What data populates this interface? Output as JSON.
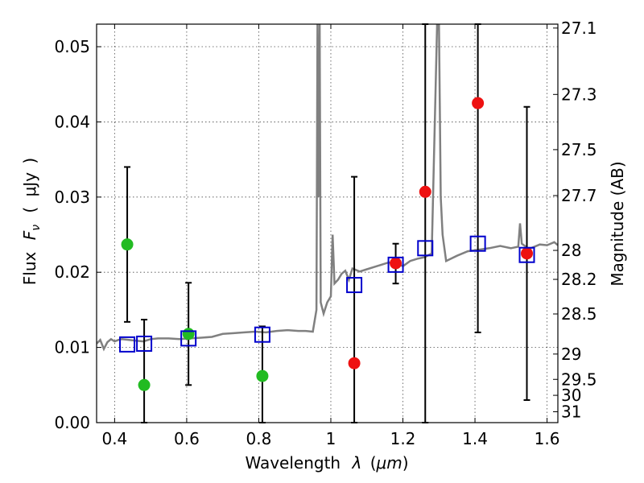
{
  "chart_data": {
    "type": "scatter",
    "xlabel": "Wavelength",
    "xlabel_symbol": "λ",
    "xlabel_unit_open": "(",
    "xlabel_unit": "μm",
    "xlabel_unit_close": ")",
    "ylabel": "Flux",
    "ylabel_symbol": "F",
    "ylabel_subscript": "ν",
    "ylabel_unit_open": "(",
    "ylabel_unit": "μJy",
    "ylabel_unit_close": ")",
    "y2label": "Magnitude (AB)",
    "xlim": [
      0.35,
      1.63
    ],
    "ylim": [
      0.0,
      0.053
    ],
    "xticks": [
      0.4,
      0.6,
      0.8,
      1.0,
      1.2,
      1.4,
      1.6
    ],
    "xtick_labels": [
      "0.4",
      "0.6",
      "0.8",
      "1",
      "1.2",
      "1.4",
      "1.6"
    ],
    "yticks": [
      0.0,
      0.01,
      0.02,
      0.03,
      0.04,
      0.05
    ],
    "ytick_labels": [
      "0.00",
      "0.01",
      "0.02",
      "0.03",
      "0.04",
      "0.05"
    ],
    "mag_ticks": [
      {
        "label": "27.1",
        "value": 27.1
      },
      {
        "label": "27.3",
        "value": 27.3
      },
      {
        "label": "27.5",
        "value": 27.5
      },
      {
        "label": "27.7",
        "value": 27.7
      },
      {
        "label": "28",
        "value": 28.0
      },
      {
        "label": "28.2",
        "value": 28.2
      },
      {
        "label": "28.5",
        "value": 28.5
      },
      {
        "label": "29",
        "value": 29.0
      },
      {
        "label": "29.5",
        "value": 29.5
      },
      {
        "label": "30",
        "value": 30.0
      },
      {
        "label": "31",
        "value": 31.0
      }
    ],
    "grid": true,
    "colors": {
      "green": "#22bb22",
      "red": "#ee1111",
      "blue_box": "#0000cc",
      "spectrum": "#808080",
      "errorbar": "#000000"
    },
    "series": [
      {
        "name": "green-detections",
        "color": "green",
        "points": [
          {
            "x": 0.435,
            "y": 0.0237,
            "ylo": 0.0134,
            "yhi": 0.034
          },
          {
            "x": 0.482,
            "y": 0.005,
            "ylo": 0.0,
            "yhi": 0.0137
          },
          {
            "x": 0.605,
            "y": 0.0118,
            "ylo": 0.005,
            "yhi": 0.0186
          },
          {
            "x": 0.81,
            "y": 0.0062,
            "ylo": 0.0,
            "yhi": 0.0128
          }
        ]
      },
      {
        "name": "red-detections",
        "color": "red",
        "points": [
          {
            "x": 1.065,
            "y": 0.0079,
            "ylo": 0.0,
            "yhi": 0.0327
          },
          {
            "x": 1.18,
            "y": 0.0212,
            "ylo": 0.0185,
            "yhi": 0.0238
          },
          {
            "x": 1.262,
            "y": 0.0307,
            "ylo": 0.0,
            "yhi": 0.053
          },
          {
            "x": 1.408,
            "y": 0.0425,
            "ylo": 0.012,
            "yhi": 0.053
          },
          {
            "x": 1.544,
            "y": 0.0225,
            "ylo": 0.003,
            "yhi": 0.042
          }
        ]
      },
      {
        "name": "model-bandpass-flux",
        "color": "blue_box",
        "points": [
          {
            "x": 0.435,
            "y": 0.0104
          },
          {
            "x": 0.482,
            "y": 0.0105
          },
          {
            "x": 0.605,
            "y": 0.0112
          },
          {
            "x": 0.81,
            "y": 0.0117
          },
          {
            "x": 1.065,
            "y": 0.0183
          },
          {
            "x": 1.18,
            "y": 0.021
          },
          {
            "x": 1.262,
            "y": 0.0232
          },
          {
            "x": 1.408,
            "y": 0.0238
          },
          {
            "x": 1.544,
            "y": 0.0223
          }
        ]
      }
    ],
    "spectrum": {
      "name": "model-spectrum",
      "color": "spectrum",
      "x": [
        0.35,
        0.36,
        0.37,
        0.38,
        0.39,
        0.4,
        0.41,
        0.42,
        0.44,
        0.46,
        0.48,
        0.5,
        0.52,
        0.55,
        0.58,
        0.61,
        0.64,
        0.67,
        0.7,
        0.73,
        0.76,
        0.79,
        0.82,
        0.85,
        0.88,
        0.91,
        0.93,
        0.95,
        0.96,
        0.963,
        0.966,
        0.969,
        0.972,
        0.98,
        0.99,
        1.0,
        1.005,
        1.01,
        1.02,
        1.03,
        1.04,
        1.05,
        1.06,
        1.08,
        1.1,
        1.12,
        1.14,
        1.16,
        1.18,
        1.2,
        1.22,
        1.24,
        1.26,
        1.28,
        1.295,
        1.3,
        1.305,
        1.31,
        1.32,
        1.35,
        1.38,
        1.41,
        1.44,
        1.47,
        1.5,
        1.52,
        1.525,
        1.53,
        1.55,
        1.58,
        1.6,
        1.62,
        1.63
      ],
      "y": [
        0.0105,
        0.011,
        0.0098,
        0.0107,
        0.0111,
        0.0108,
        0.011,
        0.0111,
        0.011,
        0.0109,
        0.0108,
        0.0111,
        0.0112,
        0.0112,
        0.0111,
        0.0112,
        0.0113,
        0.0114,
        0.0118,
        0.0119,
        0.012,
        0.0121,
        0.012,
        0.0122,
        0.0123,
        0.0122,
        0.0122,
        0.0121,
        0.015,
        0.053,
        0.03,
        0.053,
        0.016,
        0.0145,
        0.016,
        0.0168,
        0.025,
        0.0185,
        0.019,
        0.0198,
        0.0202,
        0.019,
        0.0205,
        0.0201,
        0.0204,
        0.0207,
        0.021,
        0.0213,
        0.0212,
        0.0208,
        0.0215,
        0.0218,
        0.022,
        0.0225,
        0.053,
        0.053,
        0.03,
        0.025,
        0.0215,
        0.0222,
        0.0228,
        0.023,
        0.0232,
        0.0235,
        0.0232,
        0.0234,
        0.0265,
        0.0238,
        0.0231,
        0.0237,
        0.0236,
        0.024,
        0.0236
      ]
    }
  }
}
